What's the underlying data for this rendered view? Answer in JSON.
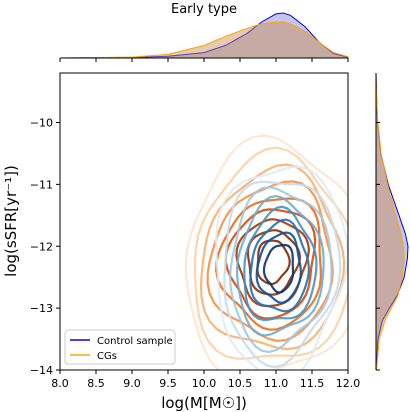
{
  "chart_data": [
    {
      "panel": "joint",
      "type": "contour",
      "title": "Early type",
      "xlabel": "log(M[M☉])",
      "ylabel": "log(sSFR[yr⁻¹])",
      "xlim": [
        8.0,
        12.0
      ],
      "ylim": [
        -14,
        -9.2
      ],
      "xticks": [
        "8.0",
        "8.5",
        "9.0",
        "9.5",
        "10.0",
        "10.5",
        "11.0",
        "11.5",
        "12.0"
      ],
      "yticks": [
        "−10",
        "−11",
        "−12",
        "−13",
        "−14"
      ],
      "legend_position": "lower-left",
      "grid": false,
      "series": [
        {
          "name": "Control sample",
          "color": "#0000ff",
          "contour_colormap": "blues",
          "center": {
            "x": 11.05,
            "y": -12.35
          },
          "levels": [
            {
              "rx": 0.2,
              "ry": 0.38
            },
            {
              "rx": 0.3,
              "ry": 0.55
            },
            {
              "rx": 0.4,
              "ry": 0.72
            },
            {
              "rx": 0.5,
              "ry": 0.9
            },
            {
              "rx": 0.6,
              "ry": 1.08
            },
            {
              "rx": 0.7,
              "ry": 1.28
            },
            {
              "rx": 0.8,
              "ry": 1.48
            },
            {
              "rx": 0.9,
              "ry": 1.7
            }
          ]
        },
        {
          "name": "CGs",
          "color": "#ffa500",
          "contour_colormap": "oranges",
          "center": {
            "x": 10.95,
            "y": -12.25
          },
          "levels": [
            {
              "rx": 0.22,
              "ry": 0.35
            },
            {
              "rx": 0.35,
              "ry": 0.52
            },
            {
              "rx": 0.48,
              "ry": 0.7
            },
            {
              "rx": 0.6,
              "ry": 0.88
            },
            {
              "rx": 0.72,
              "ry": 1.05
            },
            {
              "rx": 0.85,
              "ry": 1.25
            },
            {
              "rx": 0.98,
              "ry": 1.45
            },
            {
              "rx": 1.1,
              "ry": 1.68
            },
            {
              "rx": 1.22,
              "ry": 1.9
            }
          ]
        }
      ]
    },
    {
      "panel": "top-marginal",
      "type": "area",
      "x": [
        8.0,
        9.0,
        9.5,
        10.0,
        10.3,
        10.6,
        10.8,
        11.0,
        11.1,
        11.2,
        11.4,
        11.6,
        11.8,
        12.0
      ],
      "series": [
        {
          "name": "Control sample",
          "values": [
            0.0,
            0.01,
            0.04,
            0.12,
            0.28,
            0.55,
            0.8,
            0.98,
            1.0,
            0.95,
            0.7,
            0.35,
            0.1,
            0.02
          ]
        },
        {
          "name": "CGs",
          "values": [
            0.0,
            0.02,
            0.08,
            0.28,
            0.48,
            0.66,
            0.76,
            0.8,
            0.8,
            0.76,
            0.6,
            0.35,
            0.12,
            0.03
          ]
        }
      ]
    },
    {
      "panel": "right-marginal",
      "type": "area",
      "y": [
        -14.0,
        -13.5,
        -13.2,
        -13.0,
        -12.8,
        -12.5,
        -12.2,
        -12.0,
        -11.8,
        -11.5,
        -11.0,
        -10.5,
        -10.0,
        -9.6,
        -9.2
      ],
      "series": [
        {
          "name": "Control sample",
          "values": [
            0.01,
            0.06,
            0.2,
            0.42,
            0.66,
            0.88,
            0.98,
            1.0,
            0.92,
            0.72,
            0.38,
            0.15,
            0.05,
            0.02,
            0.0
          ]
        },
        {
          "name": "CGs",
          "values": [
            0.02,
            0.1,
            0.28,
            0.48,
            0.68,
            0.82,
            0.88,
            0.86,
            0.78,
            0.62,
            0.36,
            0.16,
            0.06,
            0.02,
            0.0
          ]
        }
      ]
    }
  ]
}
